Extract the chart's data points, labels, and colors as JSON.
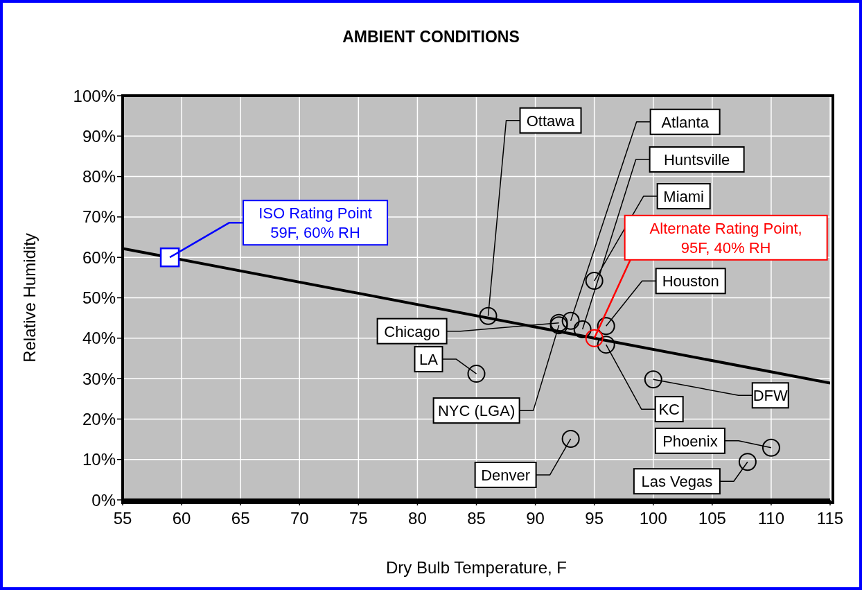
{
  "chart_data": {
    "type": "scatter",
    "title": "AMBIENT CONDITIONS",
    "xlabel": "Dry Bulb Temperature, F",
    "ylabel": "Relative Humidity",
    "xlim": [
      55,
      115
    ],
    "xticks": [
      55,
      60,
      65,
      70,
      75,
      80,
      85,
      90,
      95,
      100,
      105,
      110,
      115
    ],
    "ylim": [
      0,
      100
    ],
    "yticks": [
      {
        "value": 0,
        "label": "0%"
      },
      {
        "value": 10,
        "label": "10%"
      },
      {
        "value": 20,
        "label": "20%"
      },
      {
        "value": 30,
        "label": "30%"
      },
      {
        "value": 40,
        "label": "40%"
      },
      {
        "value": 50,
        "label": "50%"
      },
      {
        "value": 60,
        "label": "60%"
      },
      {
        "value": 70,
        "label": "70%"
      },
      {
        "value": 80,
        "label": "80%"
      },
      {
        "value": 90,
        "label": "90%"
      },
      {
        "value": 100,
        "label": "100%"
      }
    ],
    "grid": true,
    "legend": false,
    "series": [
      {
        "type": "line",
        "color": "#000000",
        "marker": "none",
        "x": [
          55,
          115
        ],
        "values": [
          62.2,
          28.9
        ]
      },
      {
        "type": "scatter",
        "color": "#000000",
        "marker": "circle",
        "x": [
          86,
          92,
          93,
          94,
          95,
          96,
          85,
          92,
          93,
          96,
          100,
          110,
          108
        ],
        "values": [
          45.5,
          43.8,
          44.3,
          42.2,
          54.2,
          43,
          31.2,
          43.2,
          15.1,
          38.4,
          29.8,
          12.9,
          9.4
        ]
      },
      {
        "type": "scatter",
        "color": "#0000ff",
        "marker": "square",
        "x": [
          59
        ],
        "values": [
          60
        ]
      },
      {
        "type": "scatter",
        "color": "#ff0000",
        "marker": "circle",
        "x": [
          95
        ],
        "values": [
          40
        ]
      }
    ],
    "annotations": [
      {
        "text": "Ottawa",
        "x": 86,
        "y": 45.5
      },
      {
        "text": "Chicago",
        "x": 92,
        "y": 43.8
      },
      {
        "text": "Atlanta",
        "x": 93,
        "y": 44.3
      },
      {
        "text": "Huntsville",
        "x": 94,
        "y": 42.2
      },
      {
        "text": "Miami",
        "x": 95,
        "y": 54.2
      },
      {
        "text": "Houston",
        "x": 96,
        "y": 43
      },
      {
        "text": "LA",
        "x": 85,
        "y": 31.2
      },
      {
        "text": "NYC (LGA)",
        "x": 92,
        "y": 43.2
      },
      {
        "text": "Denver",
        "x": 93,
        "y": 15.1
      },
      {
        "text": "KC",
        "x": 96,
        "y": 38.4
      },
      {
        "text": "DFW",
        "x": 100,
        "y": 29.8
      },
      {
        "text": "Phoenix",
        "x": 110,
        "y": 12.9
      },
      {
        "text": "Las Vegas",
        "x": 108,
        "y": 9.4
      },
      {
        "text": "ISO Rating Point 59F, 60% RH",
        "x": 59,
        "y": 60
      },
      {
        "text": "Alternate Rating Point, 95F, 40% RH",
        "x": 95,
        "y": 40
      }
    ]
  }
}
